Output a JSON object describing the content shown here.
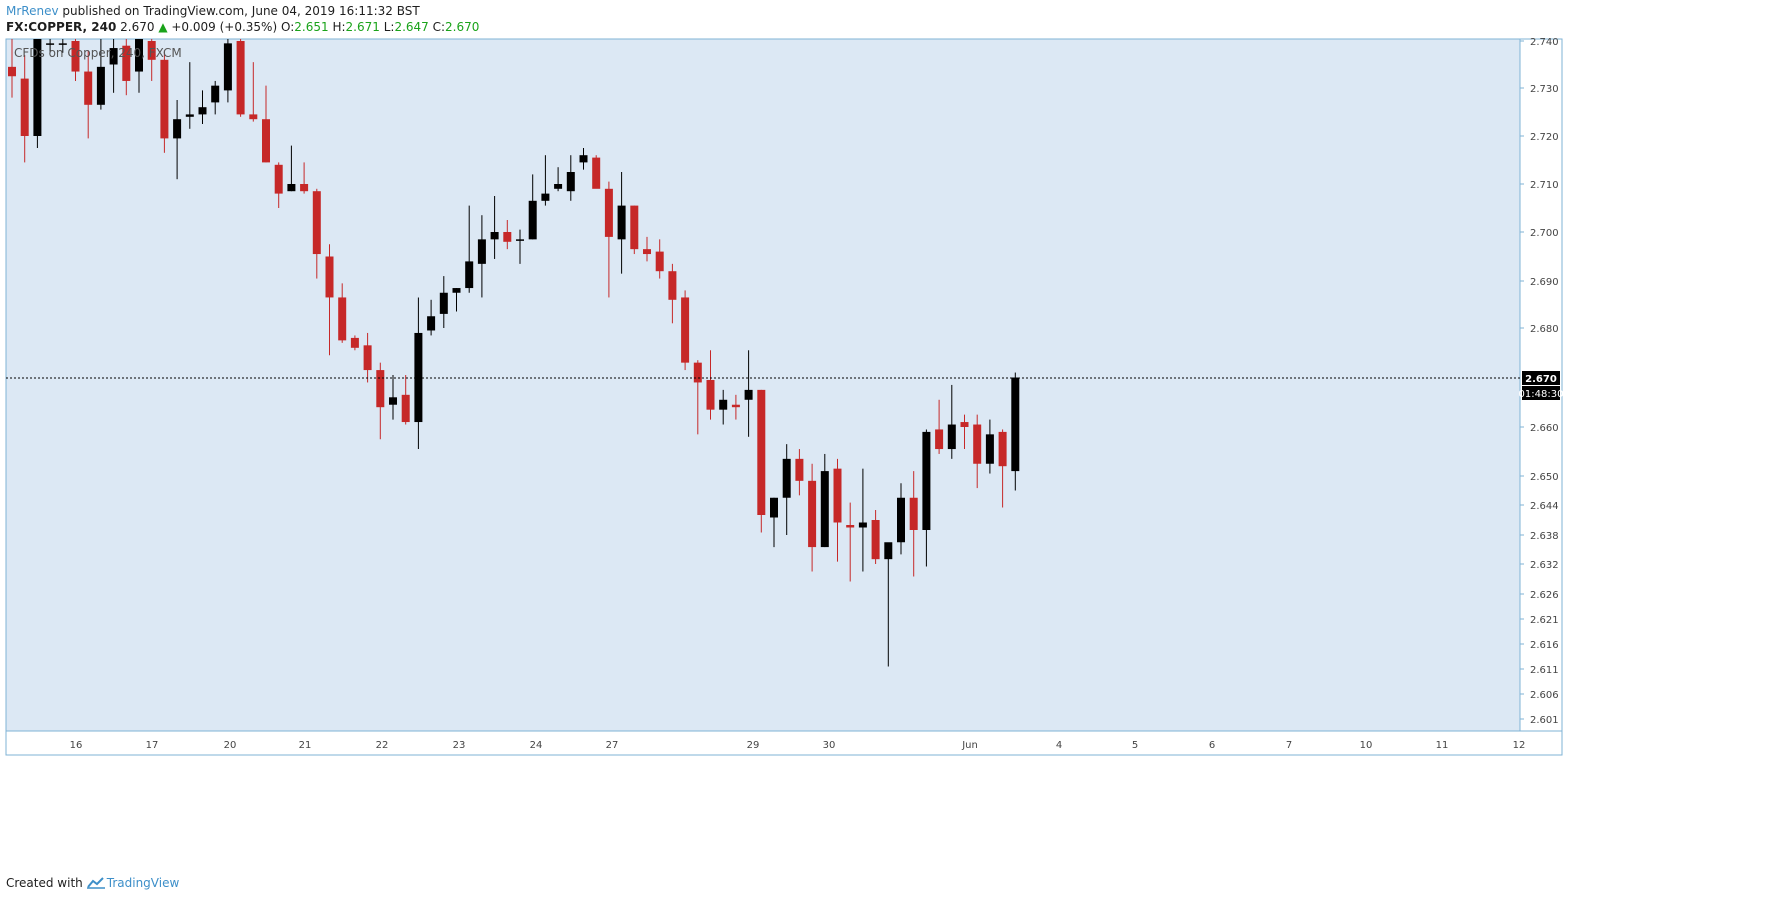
{
  "header": {
    "author": "MrRenev",
    "published_text": "published on TradingView.com, June 04, 2019 16:11:32 BST"
  },
  "ohlc_bar": {
    "symbol": "FX:COPPER, 240",
    "last": "2.670",
    "change": "+0.009 (+0.35%)",
    "o_label": "O:",
    "o_value": "2.651",
    "h_label": "H:",
    "h_value": "2.671",
    "l_label": "L:",
    "l_value": "2.647",
    "c_label": "C:",
    "c_value": "2.670"
  },
  "chart_data": {
    "type": "candlestick",
    "legend_text": "CFDs on Copper, 240, FXCM",
    "price_axis_labels": [
      "2.740",
      "2.730",
      "2.720",
      "2.710",
      "2.700",
      "2.690",
      "2.680",
      "2.660",
      "2.650",
      "2.644",
      "2.638",
      "2.632",
      "2.626",
      "2.621",
      "2.616",
      "2.611",
      "2.606",
      "2.601"
    ],
    "time_axis_labels": [
      "16",
      "17",
      "20",
      "21",
      "22",
      "23",
      "24",
      "27",
      "29",
      "30",
      "Jun",
      "4",
      "5",
      "6",
      "7",
      "10",
      "11",
      "12"
    ],
    "last_price_label": "2.670",
    "countdown_label": "01:48:30",
    "up_color": "#000000",
    "down_color": "#c62828",
    "background_color": "#dce8f4",
    "candles": [
      {
        "o": 2.7345,
        "h": 2.741,
        "l": 2.728,
        "c": 2.7325
      },
      {
        "o": 2.732,
        "h": 2.737,
        "l": 2.7145,
        "c": 2.72
      },
      {
        "o": 2.72,
        "h": 2.745,
        "l": 2.7175,
        "c": 2.745
      },
      {
        "o": 2.7395,
        "h": 2.741,
        "l": 2.7375,
        "c": 2.7395
      },
      {
        "o": 2.7395,
        "h": 2.741,
        "l": 2.7375,
        "c": 2.7395
      },
      {
        "o": 2.74,
        "h": 2.745,
        "l": 2.7315,
        "c": 2.7335
      },
      {
        "o": 2.7335,
        "h": 2.738,
        "l": 2.7195,
        "c": 2.7265
      },
      {
        "o": 2.7265,
        "h": 2.743,
        "l": 2.7255,
        "c": 2.7345
      },
      {
        "o": 2.735,
        "h": 2.742,
        "l": 2.729,
        "c": 2.7385
      },
      {
        "o": 2.739,
        "h": 2.743,
        "l": 2.7285,
        "c": 2.7315
      },
      {
        "o": 2.7335,
        "h": 2.745,
        "l": 2.729,
        "c": 2.7405
      },
      {
        "o": 2.74,
        "h": 2.743,
        "l": 2.7315,
        "c": 2.736
      },
      {
        "o": 2.736,
        "h": 2.738,
        "l": 2.7165,
        "c": 2.7195
      },
      {
        "o": 2.7195,
        "h": 2.7275,
        "l": 2.711,
        "c": 2.7235
      },
      {
        "o": 2.724,
        "h": 2.7355,
        "l": 2.7215,
        "c": 2.7245
      },
      {
        "o": 2.7245,
        "h": 2.7295,
        "l": 2.7225,
        "c": 2.726
      },
      {
        "o": 2.727,
        "h": 2.7315,
        "l": 2.7245,
        "c": 2.7305
      },
      {
        "o": 2.7295,
        "h": 2.742,
        "l": 2.727,
        "c": 2.7395
      },
      {
        "o": 2.74,
        "h": 2.741,
        "l": 2.724,
        "c": 2.7245
      },
      {
        "o": 2.7245,
        "h": 2.7355,
        "l": 2.723,
        "c": 2.7235
      },
      {
        "o": 2.7235,
        "h": 2.7305,
        "l": 2.7145,
        "c": 2.7145
      },
      {
        "o": 2.714,
        "h": 2.7145,
        "l": 2.705,
        "c": 2.708
      },
      {
        "o": 2.7085,
        "h": 2.718,
        "l": 2.7085,
        "c": 2.71
      },
      {
        "o": 2.71,
        "h": 2.7145,
        "l": 2.708,
        "c": 2.7085
      },
      {
        "o": 2.7085,
        "h": 2.709,
        "l": 2.6905,
        "c": 2.6955
      },
      {
        "o": 2.695,
        "h": 2.6975,
        "l": 2.6745,
        "c": 2.6865
      },
      {
        "o": 2.6865,
        "h": 2.6895,
        "l": 2.677,
        "c": 2.6775
      },
      {
        "o": 2.678,
        "h": 2.6785,
        "l": 2.6755,
        "c": 2.676
      },
      {
        "o": 2.6765,
        "h": 2.679,
        "l": 2.669,
        "c": 2.6715
      },
      {
        "o": 2.6715,
        "h": 2.673,
        "l": 2.6575,
        "c": 2.664
      },
      {
        "o": 2.6645,
        "h": 2.6705,
        "l": 2.6615,
        "c": 2.666
      },
      {
        "o": 2.6665,
        "h": 2.6705,
        "l": 2.6605,
        "c": 2.661
      },
      {
        "o": 2.661,
        "h": 2.6865,
        "l": 2.6555,
        "c": 2.679
      },
      {
        "o": 2.6795,
        "h": 2.686,
        "l": 2.6785,
        "c": 2.6825
      },
      {
        "o": 2.683,
        "h": 2.691,
        "l": 2.68,
        "c": 2.6875
      },
      {
        "o": 2.6875,
        "h": 2.6885,
        "l": 2.6835,
        "c": 2.6885
      },
      {
        "o": 2.6885,
        "h": 2.7055,
        "l": 2.6875,
        "c": 2.694
      },
      {
        "o": 2.6935,
        "h": 2.7035,
        "l": 2.6865,
        "c": 2.6985
      },
      {
        "o": 2.6985,
        "h": 2.7075,
        "l": 2.6945,
        "c": 2.7
      },
      {
        "o": 2.7,
        "h": 2.7025,
        "l": 2.6965,
        "c": 2.698
      },
      {
        "o": 2.6985,
        "h": 2.7005,
        "l": 2.6935,
        "c": 2.6985
      },
      {
        "o": 2.6985,
        "h": 2.712,
        "l": 2.6985,
        "c": 2.7065
      },
      {
        "o": 2.7065,
        "h": 2.716,
        "l": 2.7055,
        "c": 2.708
      },
      {
        "o": 2.709,
        "h": 2.7135,
        "l": 2.7085,
        "c": 2.71
      },
      {
        "o": 2.7085,
        "h": 2.716,
        "l": 2.7065,
        "c": 2.7125
      },
      {
        "o": 2.7145,
        "h": 2.7175,
        "l": 2.713,
        "c": 2.716
      },
      {
        "o": 2.7155,
        "h": 2.716,
        "l": 2.7095,
        "c": 2.709
      },
      {
        "o": 2.709,
        "h": 2.7105,
        "l": 2.6865,
        "c": 2.699
      },
      {
        "o": 2.6985,
        "h": 2.7125,
        "l": 2.6915,
        "c": 2.7055
      },
      {
        "o": 2.7055,
        "h": 2.7055,
        "l": 2.6955,
        "c": 2.6965
      },
      {
        "o": 2.6965,
        "h": 2.699,
        "l": 2.694,
        "c": 2.6955
      },
      {
        "o": 2.696,
        "h": 2.6985,
        "l": 2.6905,
        "c": 2.692
      },
      {
        "o": 2.692,
        "h": 2.6935,
        "l": 2.681,
        "c": 2.686
      },
      {
        "o": 2.6865,
        "h": 2.688,
        "l": 2.6715,
        "c": 2.673
      },
      {
        "o": 2.673,
        "h": 2.6735,
        "l": 2.6585,
        "c": 2.669
      },
      {
        "o": 2.6695,
        "h": 2.6755,
        "l": 2.6615,
        "c": 2.6635
      },
      {
        "o": 2.6635,
        "h": 2.6675,
        "l": 2.6605,
        "c": 2.6655
      },
      {
        "o": 2.6645,
        "h": 2.6665,
        "l": 2.6615,
        "c": 2.664
      },
      {
        "o": 2.6655,
        "h": 2.6755,
        "l": 2.658,
        "c": 2.6675
      },
      {
        "o": 2.6675,
        "h": 2.6675,
        "l": 2.6385,
        "c": 2.642
      },
      {
        "o": 2.6415,
        "h": 2.6455,
        "l": 2.6355,
        "c": 2.6455
      },
      {
        "o": 2.6455,
        "h": 2.6565,
        "l": 2.638,
        "c": 2.6535
      },
      {
        "o": 2.6535,
        "h": 2.6555,
        "l": 2.646,
        "c": 2.649
      },
      {
        "o": 2.649,
        "h": 2.6525,
        "l": 2.6305,
        "c": 2.6355
      },
      {
        "o": 2.6355,
        "h": 2.6545,
        "l": 2.6355,
        "c": 2.651
      },
      {
        "o": 2.6515,
        "h": 2.6535,
        "l": 2.6325,
        "c": 2.6405
      },
      {
        "o": 2.64,
        "h": 2.6445,
        "l": 2.6285,
        "c": 2.6395
      },
      {
        "o": 2.6395,
        "h": 2.6515,
        "l": 2.6305,
        "c": 2.6405
      },
      {
        "o": 2.641,
        "h": 2.643,
        "l": 2.632,
        "c": 2.633
      },
      {
        "o": 2.633,
        "h": 2.6355,
        "l": 2.6115,
        "c": 2.6365
      },
      {
        "o": 2.6365,
        "h": 2.6485,
        "l": 2.634,
        "c": 2.6455
      },
      {
        "o": 2.6455,
        "h": 2.651,
        "l": 2.6295,
        "c": 2.639
      },
      {
        "o": 2.639,
        "h": 2.6595,
        "l": 2.6315,
        "c": 2.659
      },
      {
        "o": 2.6595,
        "h": 2.6655,
        "l": 2.6545,
        "c": 2.6555
      },
      {
        "o": 2.6555,
        "h": 2.6685,
        "l": 2.6535,
        "c": 2.6605
      },
      {
        "o": 2.661,
        "h": 2.6625,
        "l": 2.6555,
        "c": 2.66
      },
      {
        "o": 2.6605,
        "h": 2.6625,
        "l": 2.6475,
        "c": 2.6525
      },
      {
        "o": 2.6525,
        "h": 2.6615,
        "l": 2.6505,
        "c": 2.6585
      },
      {
        "o": 2.659,
        "h": 2.6595,
        "l": 2.6435,
        "c": 2.652
      },
      {
        "o": 2.651,
        "h": 2.671,
        "l": 2.647,
        "c": 2.67
      }
    ]
  },
  "footer": {
    "created_with": "Created with",
    "brand": "TradingView"
  }
}
